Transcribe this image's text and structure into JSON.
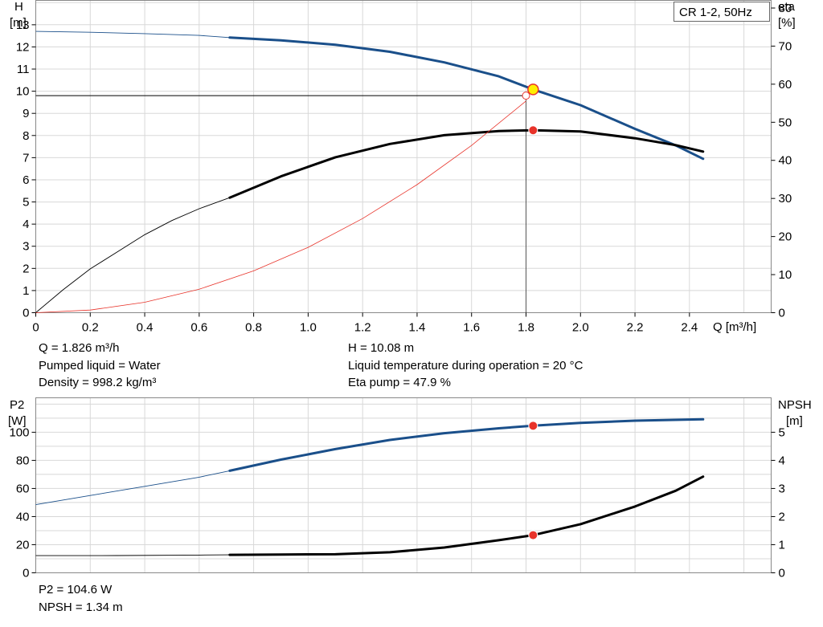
{
  "curve_label": "CR 1-2, 50Hz",
  "info": {
    "q": "Q = 1.826 m³/h",
    "liquid": "Pumped liquid = Water",
    "density": "Density = 998.2 kg/m³",
    "h": "H = 10.08 m",
    "temperature": "Liquid temperature during operation = 20 °C",
    "eta": "Eta pump = 47.9 %",
    "p2": "P2 = 104.6 W",
    "npsh": "NPSH = 1.34 m"
  },
  "colors": {
    "blue": "#1a4f8a",
    "black": "#000000",
    "red": "#e8332a",
    "grid": "#d8d8d8",
    "yellow": "#ffee00"
  },
  "chart_data": [
    {
      "type": "line",
      "x_axis": {
        "label": "Q [m³/h]",
        "range": [
          0,
          2.7
        ],
        "ticks": [
          "0",
          "0.2",
          "0.4",
          "0.6",
          "0.8",
          "1.0",
          "1.2",
          "1.4",
          "1.6",
          "1.8",
          "2.0",
          "2.2",
          "2.4"
        ]
      },
      "y_left": {
        "label_top": "H",
        "label_unit": "[m]",
        "range": [
          0,
          14.1
        ],
        "ticks": [
          "0",
          "1",
          "2",
          "3",
          "4",
          "5",
          "6",
          "7",
          "8",
          "9",
          "10",
          "11",
          "12",
          "13"
        ]
      },
      "y_right": {
        "label_top": "eta",
        "label_unit": "[%]",
        "range": [
          0,
          82
        ],
        "ticks": [
          "0",
          "10",
          "20",
          "30",
          "40",
          "50",
          "60",
          "70",
          "80"
        ]
      },
      "grid": true,
      "series": [
        {
          "axis": "left",
          "color": "blue",
          "thin": [
            [
              0,
              12.7
            ],
            [
              0.2,
              12.66
            ],
            [
              0.4,
              12.6
            ],
            [
              0.6,
              12.52
            ],
            [
              0.712,
              12.42
            ]
          ],
          "thick": [
            [
              0.712,
              12.42
            ],
            [
              0.9,
              12.3
            ],
            [
              1.1,
              12.1
            ],
            [
              1.3,
              11.78
            ],
            [
              1.5,
              11.3
            ],
            [
              1.7,
              10.67
            ],
            [
              1.826,
              10.08
            ],
            [
              2.0,
              9.37
            ],
            [
              2.2,
              8.3
            ],
            [
              2.35,
              7.55
            ],
            [
              2.45,
              6.95
            ]
          ]
        },
        {
          "axis": "right",
          "color": "black",
          "thin": [
            [
              0,
              0
            ],
            [
              0.1,
              6
            ],
            [
              0.2,
              11.5
            ],
            [
              0.3,
              16
            ],
            [
              0.4,
              20.5
            ],
            [
              0.5,
              24.2
            ],
            [
              0.6,
              27.3
            ],
            [
              0.712,
              30.2
            ]
          ],
          "thick": [
            [
              0.712,
              30.2
            ],
            [
              0.9,
              35.8
            ],
            [
              1.1,
              40.8
            ],
            [
              1.3,
              44.3
            ],
            [
              1.5,
              46.6
            ],
            [
              1.7,
              47.7
            ],
            [
              1.826,
              47.9
            ],
            [
              2.0,
              47.6
            ],
            [
              2.2,
              45.8
            ],
            [
              2.35,
              44
            ],
            [
              2.45,
              42.3
            ]
          ]
        },
        {
          "axis": "left",
          "color": "red",
          "thin": [
            [
              0,
              0
            ],
            [
              0.2,
              0.12
            ],
            [
              0.4,
              0.47
            ],
            [
              0.6,
              1.06
            ],
            [
              0.8,
              1.89
            ],
            [
              1.0,
              2.95
            ],
            [
              1.2,
              4.25
            ],
            [
              1.4,
              5.78
            ],
            [
              1.6,
              7.55
            ],
            [
              1.8,
              9.56
            ]
          ]
        }
      ],
      "system_point": {
        "x": 1.8,
        "y": 9.8
      },
      "duty_point": {
        "x": 1.826,
        "y": 10.08
      },
      "eta_point": {
        "x": 1.826,
        "y": 47.9
      }
    },
    {
      "type": "line",
      "x_axis": {
        "range": [
          0,
          2.7
        ]
      },
      "y_left": {
        "label_top": "P2",
        "label_unit": "[W]",
        "range": [
          0,
          124.5
        ],
        "ticks": [
          "0",
          "20",
          "40",
          "60",
          "80",
          "100"
        ]
      },
      "y_right": {
        "label_top": "NPSH",
        "label_unit": "[m]",
        "range": [
          0,
          6.225
        ],
        "ticks": [
          "0",
          "1",
          "2",
          "3",
          "4",
          "5"
        ]
      },
      "grid": true,
      "series": [
        {
          "axis": "left",
          "color": "blue",
          "thin": [
            [
              0,
              48.5
            ],
            [
              0.2,
              55
            ],
            [
              0.4,
              61.5
            ],
            [
              0.6,
              68
            ],
            [
              0.712,
              72.6
            ]
          ],
          "thick": [
            [
              0.712,
              72.6
            ],
            [
              0.9,
              80.5
            ],
            [
              1.1,
              88
            ],
            [
              1.3,
              94.5
            ],
            [
              1.5,
              99.3
            ],
            [
              1.7,
              102.8
            ],
            [
              1.826,
              104.6
            ],
            [
              2.0,
              106.7
            ],
            [
              2.2,
              108.2
            ],
            [
              2.45,
              109.2
            ]
          ]
        },
        {
          "axis": "right",
          "color": "black",
          "thin": [
            [
              0,
              0.61
            ],
            [
              0.3,
              0.615
            ],
            [
              0.6,
              0.63
            ],
            [
              0.712,
              0.64
            ]
          ],
          "thick": [
            [
              0.712,
              0.64
            ],
            [
              0.9,
              0.65
            ],
            [
              1.1,
              0.66
            ],
            [
              1.3,
              0.73
            ],
            [
              1.5,
              0.9
            ],
            [
              1.7,
              1.16
            ],
            [
              1.826,
              1.34
            ],
            [
              2.0,
              1.73
            ],
            [
              2.2,
              2.36
            ],
            [
              2.35,
              2.92
            ],
            [
              2.45,
              3.42
            ]
          ]
        }
      ],
      "p2_point": {
        "x": 1.826,
        "y": 104.6
      },
      "npsh_point": {
        "x": 1.826,
        "y": 1.34
      }
    }
  ]
}
